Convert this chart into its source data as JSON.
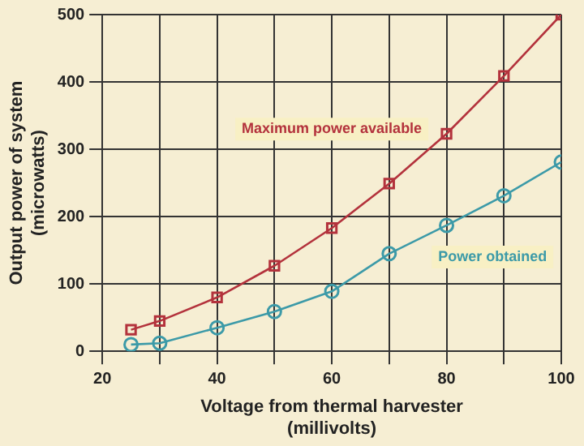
{
  "chart_data": {
    "type": "line",
    "xlabel": "Voltage from thermal harvester\n(millivolts)",
    "ylabel": "Output power of system\n(microwatts)",
    "x": [
      25,
      30,
      40,
      50,
      60,
      70,
      80,
      90,
      100
    ],
    "series": [
      {
        "name": "Maximum power available",
        "color": "#b3323c",
        "marker": "square",
        "values": [
          32,
          45,
          80,
          127,
          183,
          249,
          323,
          409,
          500
        ]
      },
      {
        "name": "Power obtained",
        "color": "#3c9aa8",
        "marker": "circle",
        "values": [
          10,
          12,
          35,
          59,
          89,
          145,
          187,
          231,
          281
        ]
      }
    ],
    "xlim": [
      20,
      100
    ],
    "xticks": [
      20,
      {
        "value": 30,
        "label": null
      },
      40,
      {
        "value": 50,
        "label": null
      },
      60,
      {
        "value": 70,
        "label": null
      },
      80,
      {
        "value": 90,
        "label": null
      },
      100
    ],
    "ylim": [
      0,
      500
    ],
    "yticks": [
      0,
      100,
      200,
      300,
      400,
      500
    ],
    "grid": true,
    "legend": false,
    "line_style": "solid"
  }
}
